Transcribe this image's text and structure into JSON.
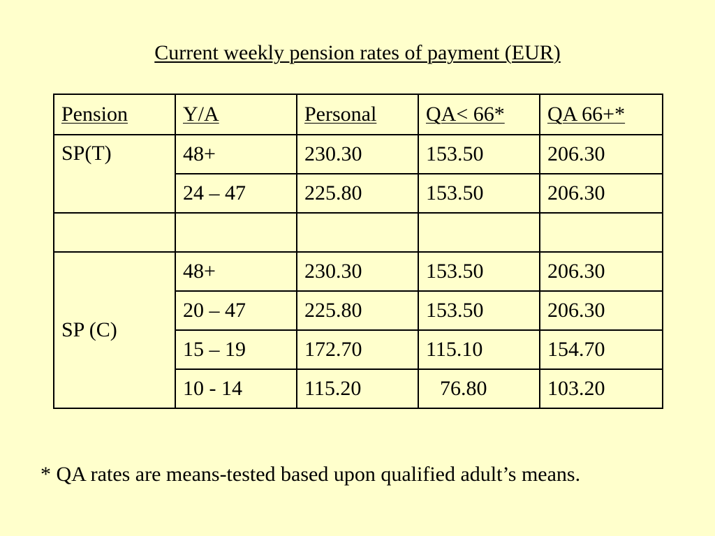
{
  "title": "Current weekly pension rates of payment (EUR)",
  "table": {
    "headers": [
      "Pension",
      "Y/A",
      "Personal",
      "QA< 66*",
      "QA 66+*"
    ],
    "groups": [
      {
        "pension": "SP(T)",
        "rows": [
          [
            "48+",
            "230.30",
            "153.50",
            "206.30"
          ],
          [
            "24 – 47",
            "225.80",
            "153.50",
            "206.30"
          ]
        ]
      },
      {
        "pension": "",
        "rows": [
          [
            "",
            "",
            "",
            ""
          ]
        ]
      },
      {
        "pension": "SP (C)",
        "rows": [
          [
            "48+",
            "230.30",
            "153.50",
            "206.30"
          ],
          [
            "20 – 47",
            "225.80",
            "153.50",
            "206.30"
          ],
          [
            "15 – 19",
            "172.70",
            "115.10",
            "154.70"
          ],
          [
            "10 - 14",
            "115.20",
            "76.80",
            "103.20"
          ]
        ]
      }
    ]
  },
  "footnote": "* QA rates are means-tested based upon qualified adult’s means."
}
